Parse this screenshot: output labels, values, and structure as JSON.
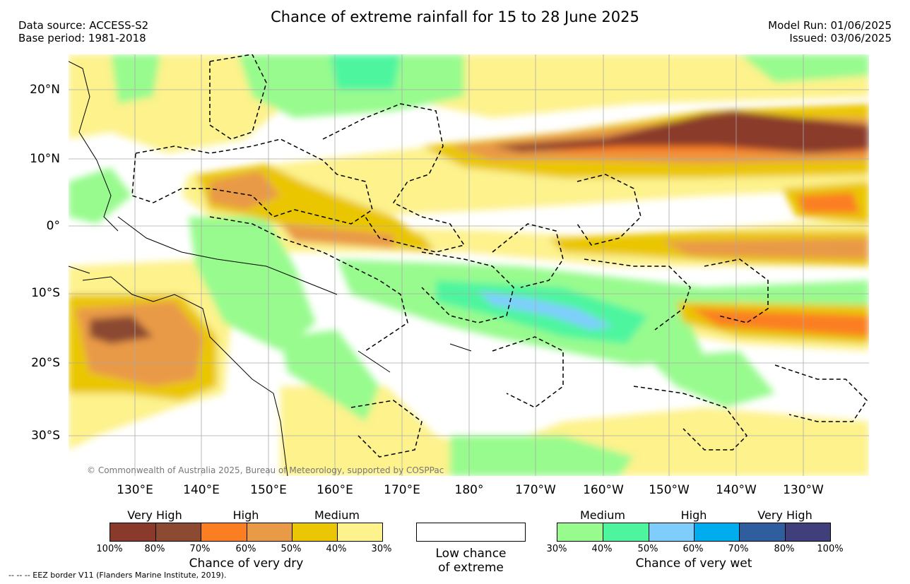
{
  "header": {
    "title": "Chance of extreme rainfall for 15 to 28 June 2025",
    "data_source": "Data source: ACCESS-S2",
    "base_period": "Base period: 1981-2018",
    "model_run": "Model Run: 01/06/2025",
    "issued": "Issued: 03/06/2025"
  },
  "map": {
    "lat_labels": [
      "20°N",
      "10°N",
      "0°",
      "10°S",
      "20°S",
      "30°S"
    ],
    "lon_labels": [
      "130°E",
      "140°E",
      "150°E",
      "160°E",
      "170°E",
      "180°",
      "170°W",
      "160°W",
      "150°W",
      "140°W",
      "130°W"
    ],
    "copyright": "© Commonwealth of Australia 2025, Bureau of Meteorology, supported by COSPPac"
  },
  "legend": {
    "dry": {
      "groups": [
        "Very High",
        "High",
        "Medium"
      ],
      "ticks": [
        "100%",
        "80%",
        "70%",
        "60%",
        "50%",
        "40%",
        "30%"
      ],
      "caption": "Chance of very dry",
      "colors": [
        "#8a3a2a",
        "#8c4a32",
        "#fb7f22",
        "#e99a47",
        "#eac604",
        "#fdf28c"
      ]
    },
    "low": {
      "caption_line1": "Low chance",
      "caption_line2": "of extreme",
      "color": "#ffffff"
    },
    "wet": {
      "groups": [
        "Medium",
        "High",
        "Very High"
      ],
      "ticks": [
        "30%",
        "40%",
        "50%",
        "60%",
        "70%",
        "80%",
        "100%"
      ],
      "caption": "Chance of very wet",
      "colors": [
        "#98fb8e",
        "#4df59f",
        "#7fcdfd",
        "#00acee",
        "#2f5e9f",
        "#403e7b"
      ]
    }
  },
  "footnote": "-- -- -- EEZ border V11 (Flanders Marine Institute, 2019)."
}
